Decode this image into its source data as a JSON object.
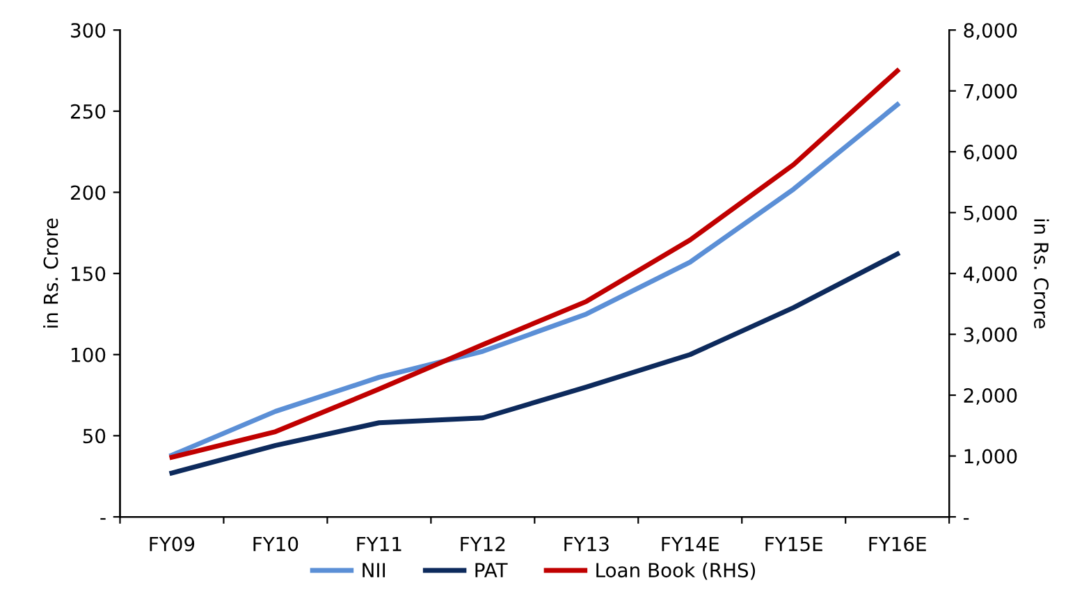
{
  "chart_data": {
    "type": "line",
    "categories": [
      "FY09",
      "FY10",
      "FY11",
      "FY12",
      "FY13",
      "FY14E",
      "FY15E",
      "FY16E"
    ],
    "series": [
      {
        "name": "NII",
        "color": "#5b8fd6",
        "values": [
          38,
          65,
          86,
          102,
          125,
          157,
          202,
          254
        ]
      },
      {
        "name": "PAT",
        "color": "#0d2a5c",
        "values": [
          27,
          44,
          58,
          61,
          80,
          100,
          129,
          162
        ]
      },
      {
        "name": "Loan Book (RHS)",
        "color": "#c00000",
        "axis": "y2",
        "values": [
          980,
          1400,
          2100,
          2830,
          3540,
          4550,
          5790,
          7330
        ]
      }
    ],
    "ylabel": "in Rs. Crore",
    "y2label": "in Rs. Crore",
    "ylim": [
      0,
      300
    ],
    "yticks": [
      {
        "value": 0,
        "label": "-"
      },
      50,
      100,
      150,
      200,
      250,
      300
    ],
    "y2lim": [
      0,
      8000
    ],
    "y2ticks": [
      {
        "value": 0,
        "label": "-"
      },
      {
        "value": 1000,
        "label": "1,000"
      },
      {
        "value": 2000,
        "label": "2,000"
      },
      {
        "value": 3000,
        "label": "3,000"
      },
      {
        "value": 4000,
        "label": "4,000"
      },
      {
        "value": 5000,
        "label": "5,000"
      },
      {
        "value": 6000,
        "label": "6,000"
      },
      {
        "value": 7000,
        "label": "7,000"
      },
      {
        "value": 8000,
        "label": "8,000"
      }
    ],
    "legend": "bottom",
    "grid": false,
    "marker": "none",
    "line_style": "solid"
  }
}
